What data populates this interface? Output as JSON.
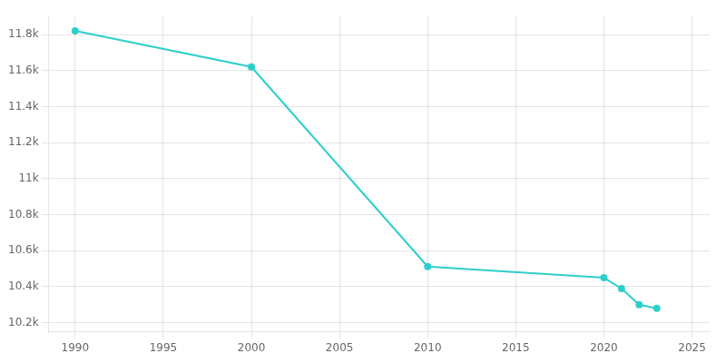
{
  "chart_data": {
    "type": "line",
    "x": [
      1990,
      2000,
      2010,
      2020,
      2021,
      2022,
      2023
    ],
    "values": [
      11820,
      11620,
      10512,
      10450,
      10390,
      10300,
      10280
    ],
    "color": "#2ecfcb",
    "marker": "circle",
    "xlim": [
      1988.5,
      2026
    ],
    "xticks": [
      1990,
      1995,
      2000,
      2005,
      2010,
      2015,
      2020,
      2025
    ],
    "ylim": [
      10150,
      11900
    ],
    "yticks": [
      {
        "value": 10200,
        "label": "10.2k"
      },
      {
        "value": 10400,
        "label": "10.4k"
      },
      {
        "value": 10600,
        "label": "10.6k"
      },
      {
        "value": 10800,
        "label": "10.8k"
      },
      {
        "value": 11000,
        "label": "11k"
      },
      {
        "value": 11200,
        "label": "11.2k"
      },
      {
        "value": 11400,
        "label": "11.4k"
      },
      {
        "value": 11600,
        "label": "11.6k"
      },
      {
        "value": 11800,
        "label": "11.8k"
      }
    ],
    "grid": true
  }
}
